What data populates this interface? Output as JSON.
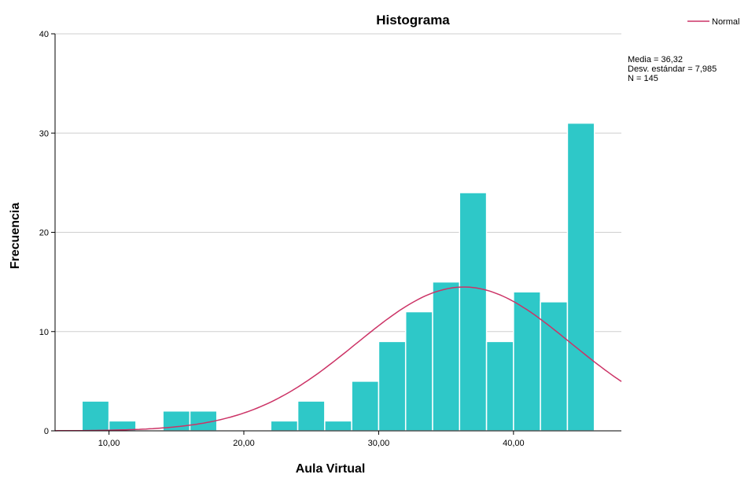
{
  "chart_data": {
    "type": "bar",
    "title": "Histograma",
    "xlabel": "Aula Virtual",
    "ylabel": "Frecuencia",
    "xlim": [
      6.0,
      48.0
    ],
    "ylim": [
      0,
      40
    ],
    "x_ticks": [
      10,
      20,
      30,
      40
    ],
    "x_tick_labels": [
      "10,00",
      "20,00",
      "30,00",
      "40,00"
    ],
    "y_ticks": [
      0,
      10,
      20,
      30,
      40
    ],
    "y_tick_labels": [
      "0",
      "10",
      "20",
      "30",
      "40"
    ],
    "grid": "horizontal",
    "bar_color": "#2ec8c8",
    "bins": [
      {
        "start": 8,
        "end": 10,
        "count": 3
      },
      {
        "start": 10,
        "end": 12,
        "count": 1
      },
      {
        "start": 12,
        "end": 14,
        "count": 0
      },
      {
        "start": 14,
        "end": 16,
        "count": 2
      },
      {
        "start": 16,
        "end": 18,
        "count": 2
      },
      {
        "start": 18,
        "end": 20,
        "count": 0
      },
      {
        "start": 20,
        "end": 22,
        "count": 0
      },
      {
        "start": 22,
        "end": 24,
        "count": 1
      },
      {
        "start": 24,
        "end": 26,
        "count": 3
      },
      {
        "start": 26,
        "end": 28,
        "count": 1
      },
      {
        "start": 28,
        "end": 30,
        "count": 5
      },
      {
        "start": 30,
        "end": 32,
        "count": 9
      },
      {
        "start": 32,
        "end": 34,
        "count": 12
      },
      {
        "start": 34,
        "end": 36,
        "count": 15
      },
      {
        "start": 36,
        "end": 38,
        "count": 24
      },
      {
        "start": 38,
        "end": 40,
        "count": 9
      },
      {
        "start": 40,
        "end": 42,
        "count": 14
      },
      {
        "start": 42,
        "end": 44,
        "count": 13
      },
      {
        "start": 44,
        "end": 46,
        "count": 31
      }
    ],
    "normal_curve": {
      "mean": 36.32,
      "sd": 7.985,
      "n": 145,
      "color": "#cc3366"
    },
    "legend": {
      "position": "top-right",
      "entries": [
        {
          "label": "Normal",
          "color": "#cc3366"
        }
      ]
    },
    "stats": {
      "mean_label": "Media = 36,32",
      "sd_label": "Desv. estándar = 7,985",
      "n_label": "N = 145"
    }
  }
}
